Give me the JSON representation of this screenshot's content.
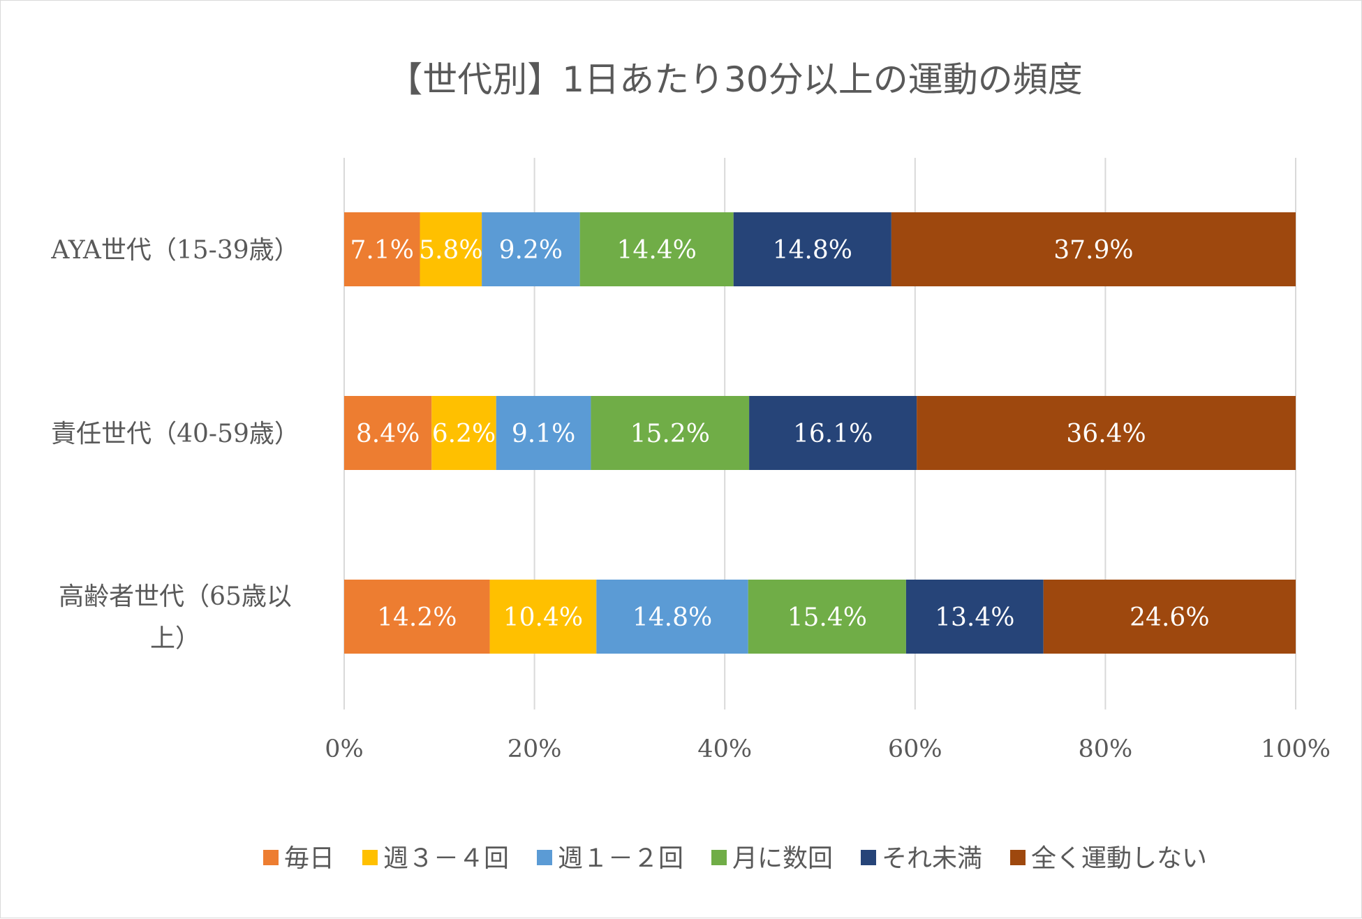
{
  "chart_data": {
    "type": "bar",
    "orientation": "horizontal",
    "stacked": "percent",
    "title": "【世代別】1日あたり30分以上の運動の頻度",
    "categories": [
      [
        "AYA世代（15-39歳）"
      ],
      [
        "責任世代（40-59歳）"
      ],
      [
        "高齢者世代（65歳以",
        "上）"
      ]
    ],
    "series": [
      {
        "name": "毎日",
        "color": "#ed7d31",
        "values": [
          7.1,
          8.4,
          14.2
        ],
        "labels": [
          "7.1%",
          "8.4%",
          "14.2%"
        ]
      },
      {
        "name": "週３－４回",
        "color": "#ffc000",
        "values": [
          5.8,
          6.2,
          10.4
        ],
        "labels": [
          "5.8%",
          "6.2%",
          "10.4%"
        ]
      },
      {
        "name": "週１－２回",
        "color": "#5b9bd5",
        "values": [
          9.2,
          9.1,
          14.8
        ],
        "labels": [
          "9.2%",
          "9.1%",
          "14.8%"
        ]
      },
      {
        "name": "月に数回",
        "color": "#70ad47",
        "values": [
          14.4,
          15.2,
          15.4
        ],
        "labels": [
          "14.4%",
          "15.2%",
          "15.4%"
        ]
      },
      {
        "name": "それ未満",
        "color": "#264478",
        "values": [
          14.8,
          16.1,
          13.4
        ],
        "labels": [
          "14.8%",
          "16.1%",
          "13.4%"
        ]
      },
      {
        "name": "全く運動しない",
        "color": "#9e480e",
        "values": [
          37.9,
          36.4,
          24.6
        ],
        "labels": [
          "37.9%",
          "36.4%",
          "24.6%"
        ]
      }
    ],
    "xaxis": {
      "ticks": [
        0,
        20,
        40,
        60,
        80,
        100
      ],
      "tick_labels": [
        "0%",
        "20%",
        "40%",
        "60%",
        "80%",
        "100%"
      ],
      "range": [
        0,
        100
      ]
    },
    "grid": true,
    "legend_position": "bottom"
  }
}
